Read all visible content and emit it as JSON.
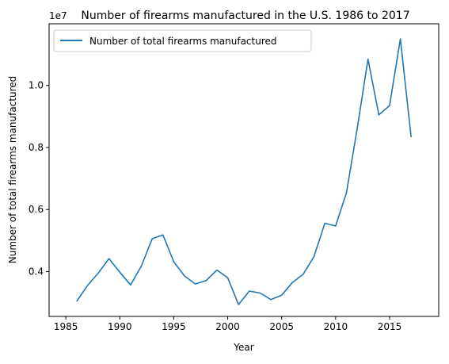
{
  "chart_data": {
    "type": "line",
    "title": "Number of firearms manufactured in the U.S. 1986 to 2017",
    "xlabel": "Year",
    "ylabel": "Number of total firearms manufactured",
    "offset_text": "1e7",
    "xlim": [
      1983.45,
      2019.55
    ],
    "ylim": [
      0.2556,
      1.1986
    ],
    "x_ticks": [
      1985,
      1990,
      1995,
      2000,
      2005,
      2010,
      2015
    ],
    "y_ticks": [
      0.4,
      0.6,
      0.8,
      1.0
    ],
    "y_tick_labels": [
      "0.4",
      "0.6",
      "0.8",
      "1.0"
    ],
    "legend_position": "top-left",
    "grid": false,
    "series": [
      {
        "name": "Number of total firearms manufactured",
        "color": "#1f77b4",
        "x": [
          1986,
          1987,
          1988,
          1989,
          1990,
          1991,
          1992,
          1993,
          1994,
          1995,
          1996,
          1997,
          1998,
          1999,
          2000,
          2001,
          2002,
          2003,
          2004,
          2005,
          2006,
          2007,
          2008,
          2009,
          2010,
          2011,
          2012,
          2013,
          2014,
          2015,
          2016,
          2017
        ],
        "values": [
          0.304,
          0.355,
          0.395,
          0.442,
          0.398,
          0.357,
          0.418,
          0.506,
          0.518,
          0.432,
          0.386,
          0.36,
          0.371,
          0.405,
          0.38,
          0.294,
          0.337,
          0.331,
          0.31,
          0.324,
          0.365,
          0.392,
          0.449,
          0.556,
          0.547,
          0.654,
          0.861,
          1.085,
          0.905,
          0.935,
          1.15,
          0.833
        ]
      }
    ]
  }
}
